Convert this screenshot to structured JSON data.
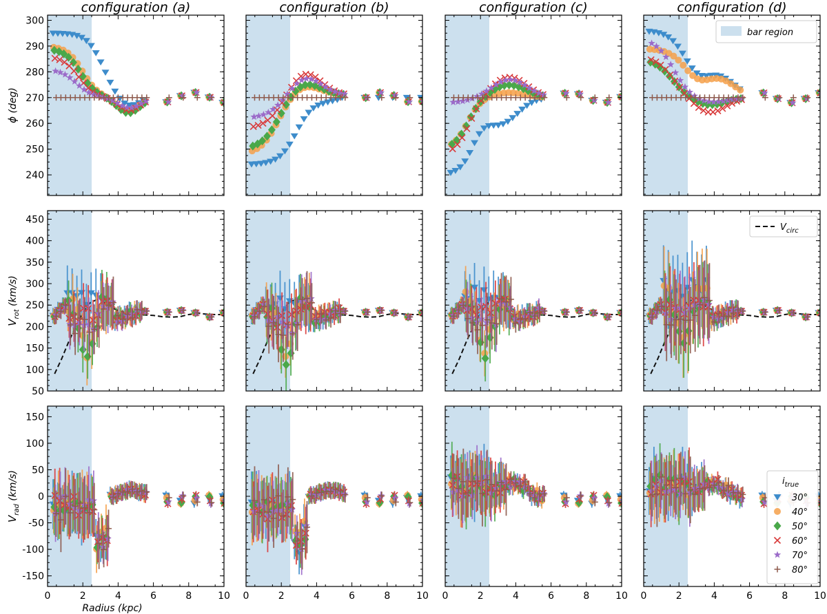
{
  "chart_data": {
    "type": "scatter",
    "columns": [
      "configuration (a)",
      "configuration (b)",
      "configuration (c)",
      "configuration (d)"
    ],
    "xlabel": "Radius (kpc)",
    "xlim": [
      0,
      10
    ],
    "xticks": [
      0,
      2,
      4,
      6,
      8,
      10
    ],
    "rows": [
      {
        "key": "phi",
        "ylabel_main": "ϕ",
        "ylabel_unit": " (deg)",
        "ylim": [
          232,
          302
        ],
        "yticks": [
          240,
          250,
          260,
          270,
          280,
          290,
          300
        ]
      },
      {
        "key": "vrot",
        "ylabel_main": "V",
        "ylabel_sub": "rot",
        "ylabel_unit": " (km/s)",
        "ylim": [
          50,
          470
        ],
        "yticks": [
          50,
          100,
          150,
          200,
          250,
          300,
          350,
          400,
          450
        ]
      },
      {
        "key": "vrad",
        "ylabel_main": "V",
        "ylabel_sub": "rad",
        "ylabel_unit": " (km/s)",
        "ylim": [
          -170,
          170
        ],
        "yticks": [
          -150,
          -100,
          -50,
          0,
          50,
          100,
          150
        ]
      }
    ],
    "bar_region": {
      "x_range": [
        0,
        2.5
      ],
      "label": "bar region",
      "color": "#cce0ee"
    },
    "vcirc": {
      "label": "V",
      "label_sub": "circ",
      "r": [
        0.4,
        0.8,
        1.2,
        1.6,
        2.0,
        2.4,
        2.8,
        3.2,
        3.6,
        4.0,
        4.5,
        5.0,
        5.5,
        6.0,
        6.5,
        7.0,
        7.5,
        8.0,
        8.5,
        9.0,
        9.5,
        10.0
      ],
      "v": [
        90,
        125,
        165,
        200,
        232,
        255,
        263,
        257,
        245,
        237,
        232,
        228,
        227,
        226,
        223,
        222,
        223,
        228,
        231,
        229,
        228,
        228
      ]
    },
    "legend_title_main": "i",
    "legend_title_sub": "true",
    "series": [
      {
        "name": "30°",
        "color": "#3d8ccb",
        "marker": "tri_down"
      },
      {
        "name": "40°",
        "color": "#f5a04a",
        "marker": "circle"
      },
      {
        "name": "50°",
        "color": "#4aa84a",
        "marker": "diamond"
      },
      {
        "name": "60°",
        "color": "#d93a3a",
        "marker": "x"
      },
      {
        "name": "70°",
        "color": "#9b6bc9",
        "marker": "star"
      },
      {
        "name": "80°",
        "color": "#8d5a4c",
        "marker": "plus"
      }
    ]
  }
}
